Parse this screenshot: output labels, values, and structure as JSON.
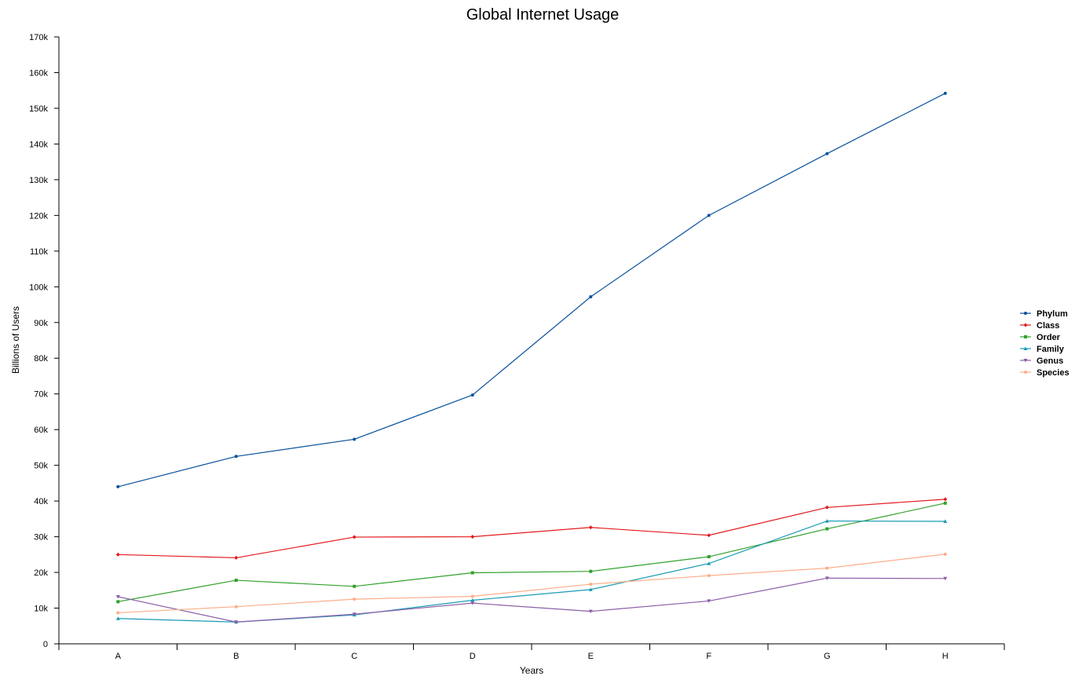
{
  "chart_data": {
    "type": "line",
    "title": "Global Internet Usage",
    "xlabel": "Years",
    "ylabel": "Billions of Users",
    "categories": [
      "A",
      "B",
      "C",
      "D",
      "E",
      "F",
      "G",
      "H"
    ],
    "ylim": [
      0,
      170000
    ],
    "yticks": [
      0,
      10000,
      20000,
      30000,
      40000,
      50000,
      60000,
      70000,
      80000,
      90000,
      100000,
      110000,
      120000,
      130000,
      140000,
      150000,
      160000,
      170000
    ],
    "ytick_labels": [
      "0",
      "10k",
      "20k",
      "30k",
      "40k",
      "50k",
      "60k",
      "70k",
      "80k",
      "90k",
      "100k",
      "110k",
      "120k",
      "130k",
      "140k",
      "150k",
      "160k",
      "170k"
    ],
    "grid": false,
    "legend_position": "right",
    "series": [
      {
        "name": "Phylum",
        "color": "#08519c",
        "marker": "circle",
        "values": [
          44000,
          52500,
          57300,
          69700,
          97200,
          120000,
          137300,
          154200
        ]
      },
      {
        "name": "Class",
        "color": "#e31a1c",
        "marker": "diamond",
        "values": [
          25000,
          24100,
          29900,
          30000,
          32600,
          30400,
          38200,
          40500
        ]
      },
      {
        "name": "Order",
        "color": "#33a02c",
        "marker": "square",
        "values": [
          11800,
          17800,
          16100,
          19900,
          20300,
          24400,
          32200,
          39400
        ]
      },
      {
        "name": "Family",
        "color": "#1a9bb4",
        "marker": "triangle",
        "values": [
          7100,
          6100,
          8100,
          12200,
          15200,
          22500,
          34400,
          34300
        ]
      },
      {
        "name": "Genus",
        "color": "#8c5fa8",
        "marker": "triangle-down",
        "values": [
          13200,
          6100,
          8300,
          11400,
          9100,
          12000,
          18400,
          18300
        ]
      },
      {
        "name": "Species",
        "color": "#fdae8a",
        "marker": "circle",
        "values": [
          8700,
          10400,
          12500,
          13300,
          16700,
          19100,
          21200,
          25100
        ]
      }
    ]
  }
}
